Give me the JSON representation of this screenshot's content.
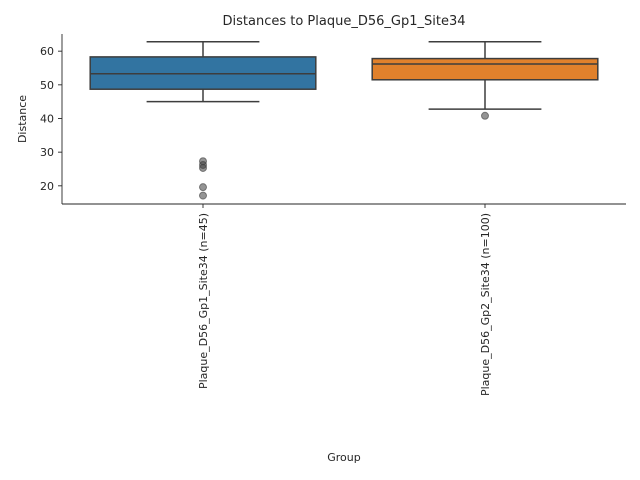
{
  "chart_data": {
    "type": "box",
    "title": "Distances to Plaque_D56_Gp1_Site34",
    "xlabel": "Group",
    "ylabel": "Distance",
    "ylim": [
      14.6,
      65.1
    ],
    "yticks": [
      20,
      30,
      40,
      50,
      60
    ],
    "grid": false,
    "categories": [
      "Plaque_D56_Gp1_Site34 (n=45)",
      "Plaque_D56_Gp2_Site34 (n=100)"
    ],
    "boxes": [
      {
        "category": "Plaque_D56_Gp1_Site34 (n=45)",
        "color": "#3274a1",
        "whisker_low": 45,
        "q1": 48.7,
        "median": 53.3,
        "q3": 58.3,
        "whisker_high": 62.8,
        "outliers": [
          27.3,
          26.2,
          25.3,
          19.6,
          17.1
        ]
      },
      {
        "category": "Plaque_D56_Gp2_Site34 (n=100)",
        "color": "#e1812c",
        "whisker_low": 42.8,
        "q1": 51.5,
        "median": 56.2,
        "q3": 57.8,
        "whisker_high": 62.8,
        "outliers": [
          40.8
        ]
      }
    ]
  }
}
